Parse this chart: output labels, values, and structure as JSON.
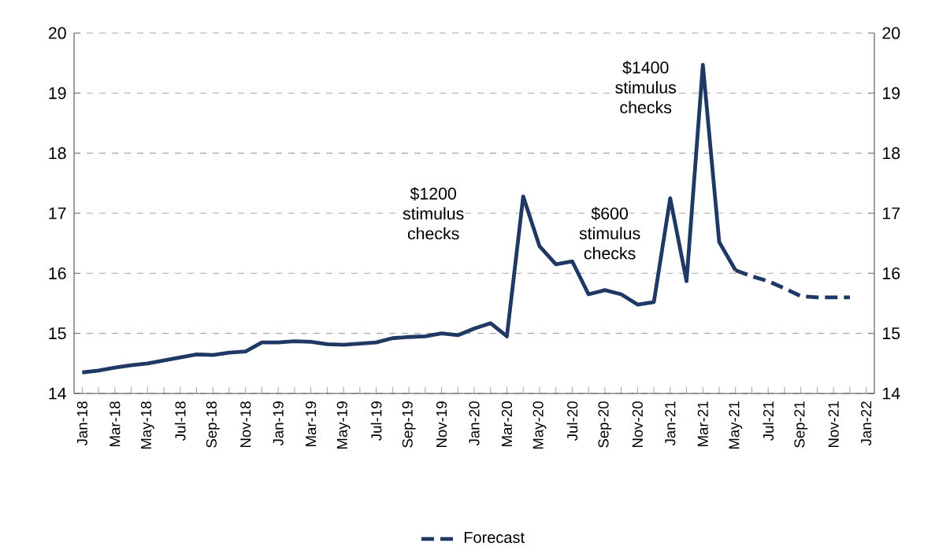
{
  "chart_data": {
    "type": "line",
    "categories": [
      "Jan-18",
      null,
      "Mar-18",
      null,
      "May-18",
      null,
      "Jul-18",
      null,
      "Sep-18",
      null,
      "Nov-18",
      null,
      "Jan-19",
      null,
      "Mar-19",
      null,
      "May-19",
      null,
      "Jul-19",
      null,
      "Sep-19",
      null,
      "Nov-19",
      null,
      "Jan-20",
      null,
      "Mar-20",
      null,
      "May-20",
      null,
      "Jul-20",
      null,
      "Sep-20",
      null,
      "Nov-20",
      null,
      "Jan-21",
      null,
      "Mar-21",
      null,
      "May-21",
      null,
      "Jul-21",
      null,
      "Sep-21",
      null,
      "Nov-21",
      null,
      "Jan-22"
    ],
    "series": [
      {
        "color": "#1f3864",
        "line_style": "solid",
        "values": [
          14.35,
          14.38,
          14.43,
          14.47,
          14.5,
          14.55,
          14.6,
          14.65,
          14.64,
          14.68,
          14.7,
          14.85,
          14.85,
          14.87,
          14.86,
          14.82,
          14.81,
          14.83,
          14.85,
          14.92,
          14.94,
          14.95,
          15.0,
          14.97,
          15.08,
          15.17,
          14.95,
          17.28,
          16.45,
          16.15,
          16.2,
          15.65,
          15.72,
          15.65,
          15.48,
          15.52,
          17.25,
          15.87,
          19.47,
          16.52,
          16.05,
          null,
          null,
          null,
          null,
          null,
          null,
          null,
          null
        ]
      },
      {
        "name": "Forecast",
        "color": "#1f3864",
        "line_style": "dashed",
        "values": [
          null,
          null,
          null,
          null,
          null,
          null,
          null,
          null,
          null,
          null,
          null,
          null,
          null,
          null,
          null,
          null,
          null,
          null,
          null,
          null,
          null,
          null,
          null,
          null,
          null,
          null,
          null,
          null,
          null,
          null,
          null,
          null,
          null,
          null,
          null,
          null,
          null,
          null,
          null,
          null,
          16.05,
          15.95,
          15.87,
          15.75,
          15.62,
          15.6,
          15.6,
          15.6,
          null
        ]
      }
    ],
    "ylim": [
      14,
      20
    ],
    "yticks": [
      14,
      15,
      16,
      17,
      18,
      19,
      20
    ],
    "y2lim": [
      14,
      20
    ],
    "y2ticks": [
      14,
      15,
      16,
      17,
      18,
      19,
      20
    ],
    "grid": "y",
    "legend": "bottom",
    "annotations": [
      "$1200 stimulus checks",
      "$600 stimulus checks",
      "$1400 stimulus checks"
    ]
  }
}
